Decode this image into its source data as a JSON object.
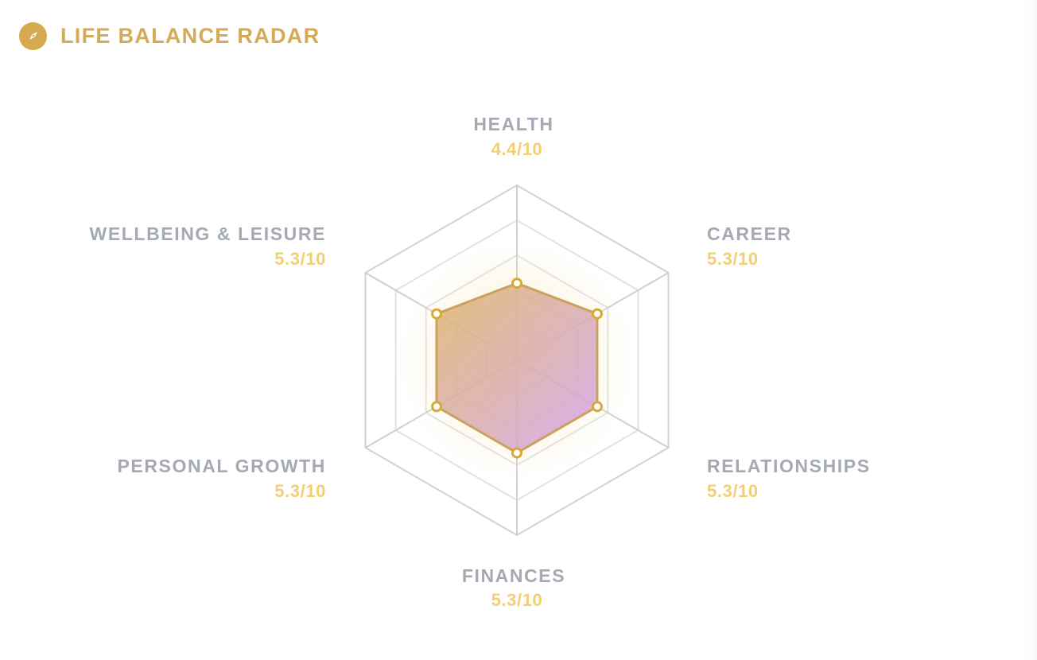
{
  "header": {
    "title": "LIFE BALANCE RADAR",
    "icon": "compass-icon"
  },
  "colors": {
    "accent": "#d4a94f",
    "value": "#f4cf72",
    "label": "#a4a9b3",
    "grid": "#d0d0d0",
    "fill_start": "#deb46a",
    "fill_end": "#d7a8e6"
  },
  "chart_data": {
    "type": "radar",
    "max": 10,
    "axes": [
      {
        "label": "HEALTH",
        "value": 4.4,
        "value_text": "4.4/10"
      },
      {
        "label": "CAREER",
        "value": 5.3,
        "value_text": "5.3/10"
      },
      {
        "label": "RELATIONSHIPS",
        "value": 5.3,
        "value_text": "5.3/10"
      },
      {
        "label": "FINANCES",
        "value": 5.3,
        "value_text": "5.3/10"
      },
      {
        "label": "PERSONAL GROWTH",
        "value": 5.3,
        "value_text": "5.3/10"
      },
      {
        "label": "WELLBEING & LEISURE",
        "value": 5.3,
        "value_text": "5.3/10"
      }
    ],
    "grid_levels": 5
  }
}
